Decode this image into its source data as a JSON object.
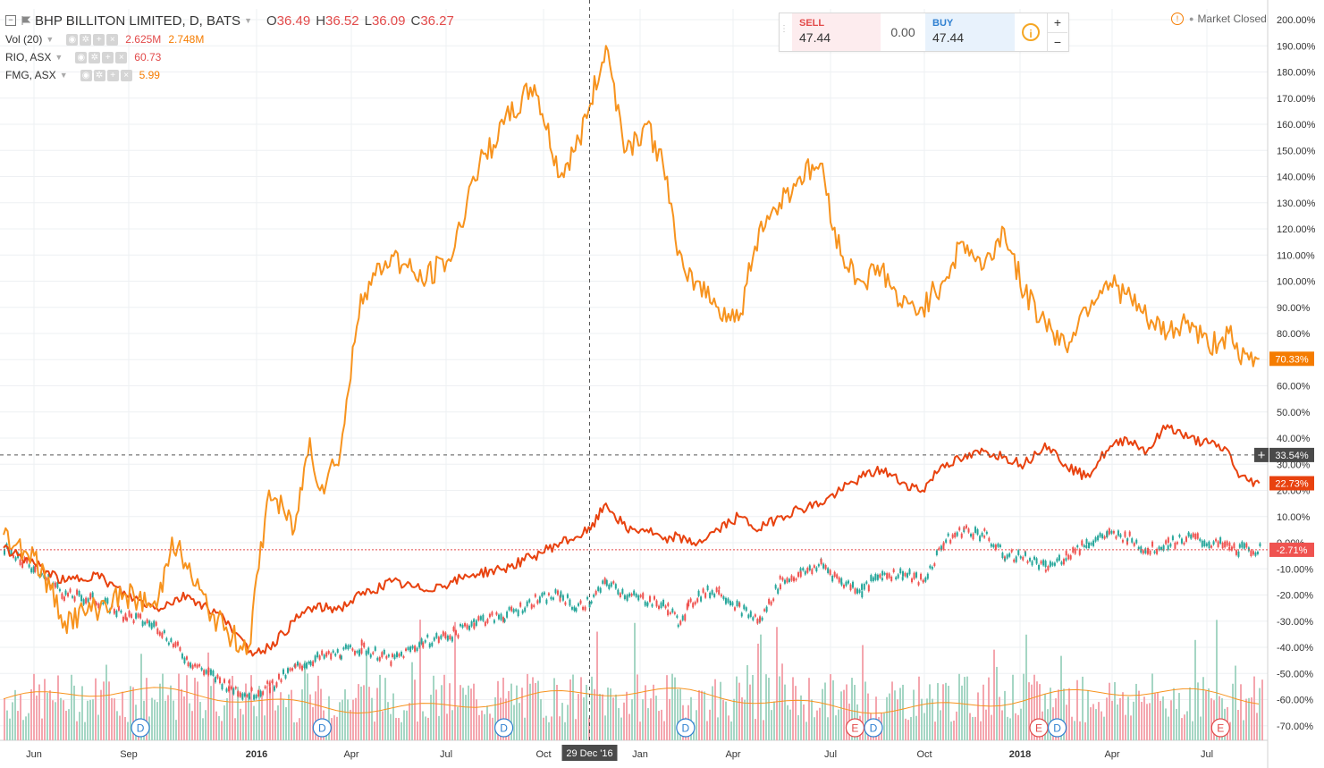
{
  "legend": {
    "main": {
      "symbol": "BHP BILLITON LIMITED, D, BATS",
      "o_label": "O",
      "o_value": "36.49",
      "h_label": "H",
      "h_value": "36.52",
      "l_label": "L",
      "l_value": "36.09",
      "c_label": "C",
      "c_value": "36.27"
    },
    "vol": {
      "label": "Vol (20)",
      "value1": "2.625M",
      "value2": "2.748M"
    },
    "rio": {
      "label": "RIO, ASX",
      "value": "60.73"
    },
    "fmg": {
      "label": "FMG, ASX",
      "value": "5.99"
    }
  },
  "trade": {
    "sell_label": "SELL",
    "sell_price": "47.44",
    "spread": "0.00",
    "buy_label": "BUY",
    "buy_price": "47.44",
    "plus": "+",
    "minus": "−"
  },
  "market_status": "Market Closed",
  "colors": {
    "fmg": "#f7931e",
    "rio": "#e8420f",
    "bhp_up": "#26a69a",
    "bhp_down": "#ef5350",
    "vol_up": "#a5d6c4",
    "vol_down": "#f4a6ae",
    "vol_ma": "#f7931e",
    "grid": "#eef0f3"
  },
  "chart_data": {
    "type": "line",
    "title": "BHP BILLITON LIMITED, D, BATS",
    "x_ticks": [
      "Jun",
      "Sep",
      "2016",
      "Apr",
      "Jul",
      "Oct",
      "Jan",
      "Apr",
      "Jul",
      "Oct",
      "2018",
      "Apr",
      "Jul"
    ],
    "y_ticks": [
      "200.00%",
      "190.00%",
      "180.00%",
      "170.00%",
      "160.00%",
      "150.00%",
      "140.00%",
      "130.00%",
      "120.00%",
      "110.00%",
      "100.00%",
      "90.00%",
      "80.00%",
      "70.00%",
      "60.00%",
      "50.00%",
      "40.00%",
      "30.00%",
      "20.00%",
      "10.00%",
      "0.00%",
      "-10.00%",
      "-20.00%",
      "-30.00%",
      "-40.00%",
      "-50.00%",
      "-60.00%",
      "-70.00%"
    ],
    "ylim": [
      -73,
      202
    ],
    "xlim": [
      0,
      1230
    ],
    "crosshair": {
      "x_label": "29 Dec '16",
      "y_label": "33.54%",
      "x_day": 574,
      "y": 33.54
    },
    "last_values": [
      {
        "series": "FMG, ASX",
        "label": "70.33%",
        "value": 70.33
      },
      {
        "series": "RIO, ASX",
        "label": "22.73%",
        "value": 22.73
      },
      {
        "series": "BHP BILLITON LIMITED",
        "label": "-2.71%",
        "value": -2.71
      }
    ],
    "series": [
      {
        "name": "FMG, ASX",
        "style": "line",
        "x": [
          0,
          30,
          60,
          90,
          120,
          150,
          165,
          180,
          200,
          220,
          240,
          260,
          285,
          300,
          310,
          330,
          350,
          380,
          410,
          440,
          460,
          490,
          520,
          545,
          560,
          575,
          590,
          610,
          630,
          650,
          660,
          670,
          680,
          700,
          720,
          740,
          760,
          780,
          800,
          820,
          840,
          860,
          880,
          900,
          920,
          940,
          960,
          980,
          1000,
          1020,
          1040,
          1060,
          1080,
          1100,
          1120,
          1140,
          1160,
          1180,
          1200,
          1210,
          1230
        ],
        "y": [
          3,
          -5,
          -30,
          -25,
          -20,
          -25,
          2,
          -10,
          -25,
          -35,
          -40,
          20,
          5,
          40,
          20,
          35,
          95,
          110,
          100,
          110,
          140,
          160,
          175,
          140,
          150,
          168,
          190,
          150,
          160,
          140,
          110,
          100,
          100,
          90,
          85,
          120,
          130,
          140,
          145,
          110,
          100,
          105,
          90,
          90,
          100,
          115,
          105,
          120,
          95,
          85,
          75,
          90,
          100,
          95,
          85,
          80,
          85,
          75,
          80,
          70.33,
          70.33
        ]
      },
      {
        "name": "RIO, ASX",
        "style": "line",
        "x": [
          0,
          30,
          60,
          90,
          120,
          150,
          180,
          200,
          220,
          240,
          260,
          285,
          300,
          330,
          350,
          380,
          410,
          440,
          460,
          490,
          520,
          545,
          560,
          575,
          590,
          610,
          630,
          650,
          660,
          670,
          680,
          700,
          720,
          740,
          760,
          780,
          800,
          820,
          840,
          860,
          880,
          900,
          920,
          940,
          960,
          980,
          1000,
          1020,
          1040,
          1060,
          1080,
          1100,
          1120,
          1140,
          1160,
          1180,
          1200,
          1210,
          1230
        ],
        "y": [
          -2,
          -8,
          -15,
          -12,
          -20,
          -25,
          -20,
          -25,
          -30,
          -42,
          -40,
          -30,
          -25,
          -25,
          -20,
          -15,
          -18,
          -15,
          -12,
          -10,
          -5,
          0,
          2,
          5,
          15,
          5,
          5,
          0,
          3,
          0,
          0,
          5,
          10,
          5,
          10,
          13,
          15,
          20,
          25,
          28,
          23,
          20,
          30,
          32,
          35,
          33,
          30,
          38,
          30,
          25,
          35,
          40,
          35,
          45,
          40,
          38,
          35,
          25,
          22.73
        ]
      },
      {
        "name": "BHP BILLITON LIMITED",
        "style": "candles",
        "x": [
          0,
          30,
          60,
          90,
          120,
          150,
          180,
          200,
          220,
          240,
          260,
          285,
          300,
          330,
          350,
          380,
          410,
          440,
          460,
          490,
          520,
          545,
          560,
          575,
          590,
          610,
          630,
          650,
          660,
          670,
          680,
          700,
          720,
          740,
          760,
          780,
          800,
          820,
          840,
          860,
          880,
          900,
          920,
          940,
          960,
          980,
          1000,
          1020,
          1040,
          1060,
          1080,
          1100,
          1120,
          1140,
          1160,
          1180,
          1200,
          1210,
          1230
        ],
        "y": [
          -2,
          -10,
          -20,
          -22,
          -28,
          -32,
          -45,
          -50,
          -55,
          -58,
          -55,
          -48,
          -45,
          -42,
          -40,
          -45,
          -38,
          -35,
          -30,
          -28,
          -22,
          -20,
          -25,
          -22,
          -15,
          -20,
          -22,
          -25,
          -30,
          -25,
          -20,
          -18,
          -25,
          -30,
          -15,
          -12,
          -8,
          -15,
          -18,
          -12,
          -12,
          -15,
          0,
          5,
          3,
          -5,
          -5,
          -10,
          -5,
          0,
          3,
          2,
          -3,
          0,
          2,
          0,
          -2,
          -2.71,
          -2.71
        ]
      },
      {
        "name": "Vol (20)",
        "style": "histogram_overlay",
        "note_scale": "relative"
      }
    ],
    "events": [
      {
        "type": "D",
        "day": 120
      },
      {
        "type": "D",
        "day": 298
      },
      {
        "type": "D",
        "day": 476
      },
      {
        "type": "D",
        "day": 654
      },
      {
        "type": "E",
        "day": 820
      },
      {
        "type": "D",
        "day": 838
      },
      {
        "type": "E",
        "day": 1000
      },
      {
        "type": "D",
        "day": 1018
      },
      {
        "type": "E",
        "day": 1178
      }
    ]
  }
}
